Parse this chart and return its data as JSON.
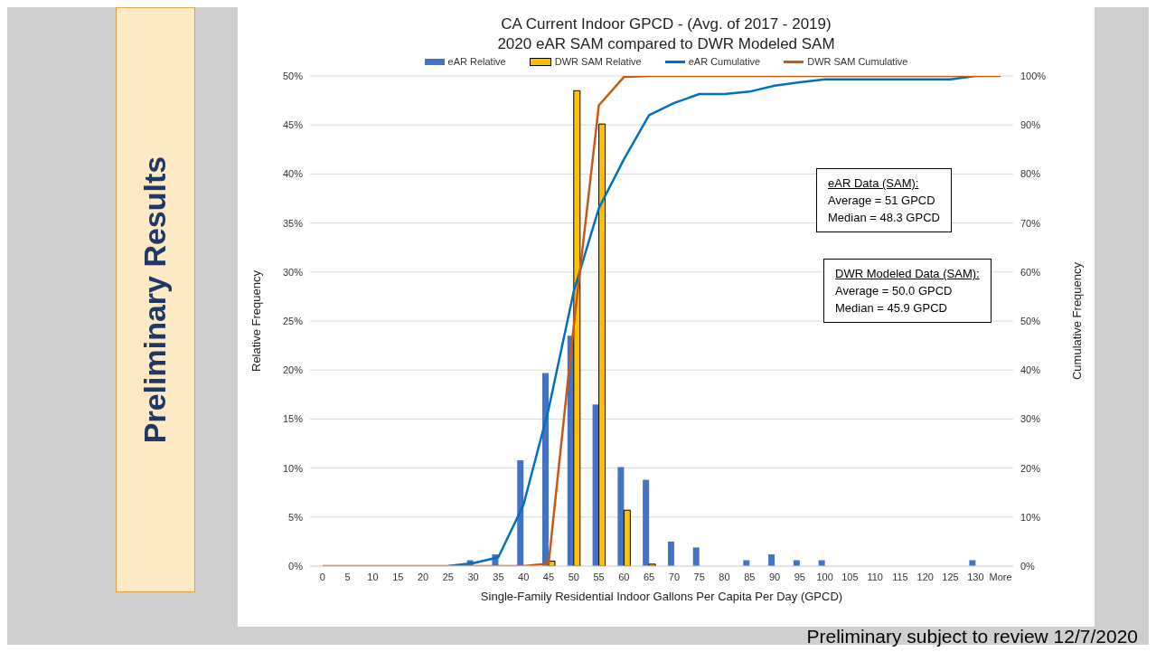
{
  "chart_data": {
    "type": "bar",
    "title": "CA Current Indoor GPCD - (Avg. of 2017 - 2019)",
    "subtitle": "2020 eAR SAM compared to DWR Modeled SAM",
    "xlabel": "Single-Family Residential Indoor Gallons Per Capita Per Day (GPCD)",
    "ylabel": "Relative Frequency",
    "y2label": "Cumulative Frequency",
    "categories": [
      "0",
      "5",
      "10",
      "15",
      "20",
      "25",
      "30",
      "35",
      "40",
      "45",
      "50",
      "55",
      "60",
      "65",
      "70",
      "75",
      "80",
      "85",
      "90",
      "95",
      "100",
      "105",
      "110",
      "115",
      "120",
      "125",
      "130",
      "More"
    ],
    "series": [
      {
        "name": "eAR Relative",
        "color": "#4472c4",
        "values": [
          0,
          0,
          0,
          0,
          0,
          0,
          0.6,
          1.2,
          10.8,
          19.7,
          23.5,
          16.5,
          10.1,
          8.8,
          2.5,
          1.9,
          0,
          0.6,
          1.2,
          0.6,
          0.6,
          0,
          0,
          0,
          0,
          0,
          0.6,
          0
        ]
      },
      {
        "name": "DWR SAM Relative",
        "color": "#ffc000",
        "values": [
          0,
          0,
          0,
          0,
          0,
          0,
          0,
          0,
          0,
          0.5,
          48.5,
          45.1,
          5.7,
          0.2,
          0,
          0,
          0,
          0,
          0,
          0,
          0,
          0,
          0,
          0,
          0,
          0,
          0,
          0
        ]
      },
      {
        "name": "eAR Cumulative",
        "type": "line",
        "axis": "y2",
        "color": "#0070c0",
        "values": [
          null,
          null,
          null,
          null,
          null,
          0,
          0.6,
          1.8,
          12.5,
          32,
          56,
          73,
          83,
          92,
          94.5,
          96.3,
          96.3,
          96.8,
          98,
          98.7,
          99.3,
          99.3,
          99.3,
          99.3,
          99.3,
          99.3,
          100,
          null
        ]
      },
      {
        "name": "DWR SAM Cumulative",
        "type": "line",
        "axis": "y2",
        "color": "#c55a11",
        "values": [
          0,
          0,
          0,
          0,
          0,
          0,
          0,
          0,
          0,
          0.5,
          49,
          94,
          99.8,
          100,
          100,
          100,
          100,
          100,
          100,
          100,
          100,
          100,
          100,
          100,
          100,
          100,
          100,
          100
        ]
      }
    ],
    "ylim": [
      0,
      50
    ],
    "yticks": [
      {
        "value": 0,
        "label": "0%"
      },
      {
        "value": 5,
        "label": "5%"
      },
      {
        "value": 10,
        "label": "10%"
      },
      {
        "value": 15,
        "label": "15%"
      },
      {
        "value": 20,
        "label": "20%"
      },
      {
        "value": 25,
        "label": "25%"
      },
      {
        "value": 30,
        "label": "30%"
      },
      {
        "value": 35,
        "label": "35%"
      },
      {
        "value": 40,
        "label": "40%"
      },
      {
        "value": 45,
        "label": "45%"
      },
      {
        "value": 50,
        "label": "50%"
      }
    ],
    "y2lim": [
      0,
      100
    ],
    "y2ticks": [
      {
        "value": 0,
        "label": "0%"
      },
      {
        "value": 10,
        "label": "10%"
      },
      {
        "value": 20,
        "label": "20%"
      },
      {
        "value": 30,
        "label": "30%"
      },
      {
        "value": 40,
        "label": "40%"
      },
      {
        "value": 50,
        "label": "50%"
      },
      {
        "value": 60,
        "label": "60%"
      },
      {
        "value": 70,
        "label": "70%"
      },
      {
        "value": 80,
        "label": "80%"
      },
      {
        "value": 90,
        "label": "90%"
      },
      {
        "value": 100,
        "label": "100%"
      }
    ],
    "grid": "y",
    "legend": "top",
    "line_style": "solid",
    "annotations": [
      "eAR Data (SAM):\nAverage = 51 GPCD\nMedian = 48.3 GPCD",
      "DWR Modeled Data (SAM):\nAverage = 50.0 GPCD\nMedian = 45.9 GPCD",
      "Preliminary Results",
      "Preliminary subject to review 12/7/2020"
    ]
  }
}
